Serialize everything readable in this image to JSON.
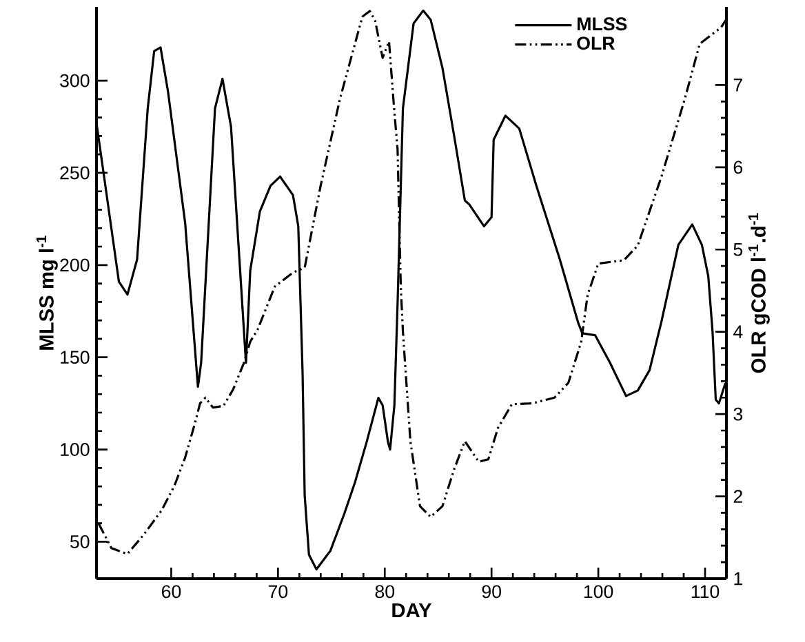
{
  "chart_data": {
    "type": "line",
    "xlabel": "DAY",
    "ylabel": "MLSS  mg l$^{-1}$",
    "y2label": "OLR gCOD l$^{-1}$.d$^{-1}$",
    "xlim": [
      53,
      112
    ],
    "xticks": [
      60,
      70,
      80,
      90,
      100,
      110
    ],
    "ylim": [
      30,
      340
    ],
    "yticks": [
      50,
      100,
      150,
      200,
      250,
      300
    ],
    "y2lim": [
      1,
      7.95
    ],
    "y2ticks": [
      1,
      2,
      3,
      4,
      5,
      6,
      7
    ],
    "legend": "top right",
    "grid": false,
    "series": [
      {
        "name": "MLSS",
        "color": "#000000",
        "line_style": "solid",
        "axis": "y",
        "x": [
          53,
          55.1,
          55.9,
          56.8,
          57.8,
          58.4,
          59.0,
          59.7,
          61.3,
          62.5,
          62.8,
          64.1,
          64.8,
          65.6,
          67.0,
          67.4,
          68.3,
          69.3,
          70.2,
          71.4,
          71.9,
          72.3,
          72.5,
          72.9,
          73.6,
          74.9,
          76.2,
          77.2,
          78.3,
          79.4,
          79.8,
          80.3,
          80.5,
          80.9,
          81.2,
          81.7,
          82.7,
          83.6,
          84.3,
          85.4,
          86.5,
          87.5,
          87.9,
          89.3,
          90.0,
          90.2,
          91.3,
          92.6,
          94.2,
          96.4,
          98.1,
          98.5,
          99.7,
          101.1,
          102.6,
          103.7,
          104.8,
          105.9,
          107.5,
          108.8,
          109.7,
          110.3,
          110.7,
          111.0,
          111.3,
          111.9
        ],
        "values": [
          277,
          191,
          184,
          203,
          285,
          316,
          318,
          294,
          223,
          134,
          147,
          285,
          301,
          275,
          147,
          197,
          229,
          243,
          248,
          238,
          221,
          142,
          75,
          43,
          35,
          45,
          65,
          82,
          104,
          128,
          124,
          104,
          100,
          124,
          179,
          285,
          331,
          338,
          333,
          307,
          270,
          235,
          233,
          221,
          226,
          268,
          281,
          274,
          243,
          203,
          169,
          163,
          162,
          147,
          129,
          132,
          143,
          169,
          211,
          222,
          211,
          194,
          164,
          127,
          125,
          136
        ]
      },
      {
        "name": "OLR",
        "color": "#000000",
        "line_style": "dashed",
        "axis": "y2",
        "x": [
          53.2,
          54.4,
          55.9,
          57.4,
          59.1,
          60.3,
          61.3,
          62.2,
          62.7,
          63.2,
          63.9,
          64.9,
          65.8,
          66.8,
          67.4,
          68.1,
          69.7,
          71.4,
          72.5,
          74.0,
          75.8,
          77.1,
          77.9,
          78.6,
          79.1,
          79.8,
          80.4,
          80.9,
          81.2,
          81.5,
          81.7,
          82.4,
          83.3,
          84.3,
          85.4,
          86.5,
          87.5,
          88.8,
          89.7,
          90.6,
          91.9,
          93.8,
          95.9,
          97.2,
          98.4,
          99.0,
          100.0,
          102.4,
          103.7,
          105.9,
          108.1,
          109.5,
          110.7,
          111.5,
          112
        ],
        "values": [
          1.67,
          1.37,
          1.3,
          1.53,
          1.83,
          2.13,
          2.47,
          2.88,
          3.13,
          3.2,
          3.08,
          3.1,
          3.3,
          3.62,
          3.88,
          4.03,
          4.55,
          4.72,
          4.78,
          5.78,
          6.83,
          7.45,
          7.83,
          7.9,
          7.78,
          7.33,
          7.53,
          6.67,
          6.22,
          4.55,
          4.0,
          2.67,
          1.88,
          1.75,
          1.88,
          2.33,
          2.67,
          2.42,
          2.45,
          2.83,
          3.12,
          3.13,
          3.2,
          3.38,
          3.88,
          4.45,
          4.83,
          4.87,
          5.05,
          5.88,
          6.83,
          7.5,
          7.62,
          7.7,
          7.8
        ]
      }
    ]
  }
}
